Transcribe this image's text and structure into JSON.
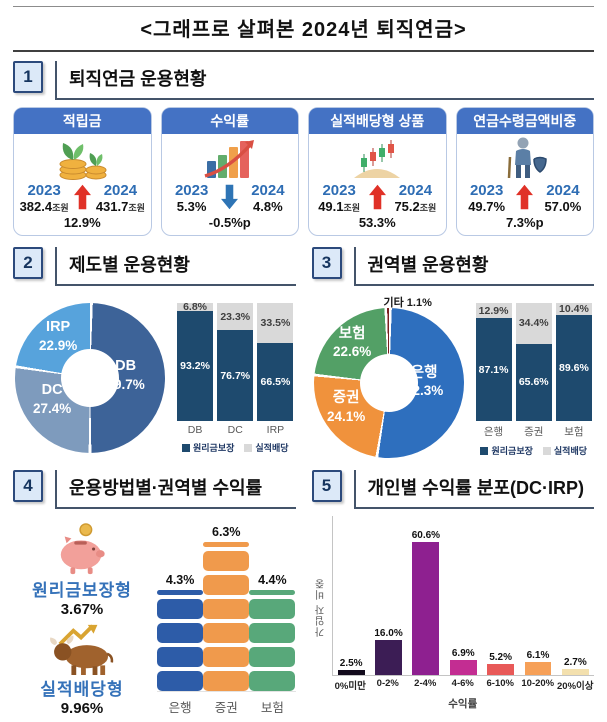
{
  "page_title": "<그래프로 살펴본 2024년 퇴직연금>",
  "sections": {
    "s1": {
      "num": "1",
      "title": "퇴직연금 운용현황"
    },
    "s2": {
      "num": "2",
      "title": "제도별 운용현황"
    },
    "s3": {
      "num": "3",
      "title": "권역별 운용현황"
    },
    "s4": {
      "num": "4",
      "title": "운용방법별·권역별 수익률"
    },
    "s5": {
      "num": "5",
      "title": "개인별 수익률 분포(DC·IRP)"
    }
  },
  "cards": [
    {
      "header": "적립금",
      "icon": "coin-sprout-icon",
      "year1": "2023",
      "value1": "382.4",
      "unit1": "조원",
      "year2": "2024",
      "value2": "431.7",
      "unit2": "조원",
      "direction": "up",
      "change": "12.9%"
    },
    {
      "header": "수익률",
      "icon": "bar-growth-icon",
      "year1": "2023",
      "value1": "5.3%",
      "unit1": "",
      "year2": "2024",
      "value2": "4.8%",
      "unit2": "",
      "direction": "down",
      "change": "-0.5%p"
    },
    {
      "header": "실적배당형 상품",
      "icon": "candlestick-icon",
      "year1": "2023",
      "value1": "49.1",
      "unit1": "조원",
      "year2": "2024",
      "value2": "75.2",
      "unit2": "조원",
      "direction": "up",
      "change": "53.3%"
    },
    {
      "header": "연금수령금액비중",
      "icon": "senior-icon",
      "year1": "2023",
      "value1": "49.7%",
      "unit1": "",
      "year2": "2024",
      "value2": "57.0%",
      "unit2": "",
      "direction": "up",
      "change": "7.3%p"
    }
  ],
  "methods": [
    {
      "label": "원리금보장형",
      "value": "3.67%",
      "icon": "piggy-bank-icon"
    },
    {
      "label": "실적배당형",
      "value": "9.96%",
      "icon": "bull-icon"
    }
  ],
  "colors": {
    "card_header": "#4472c4",
    "year_label": "#2e6db4",
    "arrow_up": "#e03127",
    "arrow_down": "#2e74b5",
    "accent_navy": "#1e4a6e",
    "accent_gray": "#d9d9d9",
    "section_line": "#44546a",
    "num_box_bg": "#dce9f8",
    "num_box_border": "#2c4a7c",
    "method_label": "#3572b9"
  },
  "chart_data": [
    {
      "id": "donut-system",
      "type": "pie",
      "donut": true,
      "title": "제도별 운용현황",
      "labels": [
        "DB",
        "DC",
        "IRP"
      ],
      "values": [
        49.7,
        27.4,
        22.9
      ],
      "colors": [
        "#3d6398",
        "#7e9bbd",
        "#57a3dc"
      ],
      "start_angle": "top",
      "direction": "clockwise"
    },
    {
      "id": "stack-system",
      "type": "bar",
      "stacked": true,
      "percent": true,
      "categories": [
        "DB",
        "DC",
        "IRP"
      ],
      "series": [
        {
          "name": "원리금보장",
          "color": "#1e4a6e",
          "values": [
            93.2,
            76.7,
            66.5
          ]
        },
        {
          "name": "실적배당",
          "color": "#d9d9d9",
          "values": [
            6.8,
            23.3,
            33.5
          ]
        }
      ],
      "ylim": [
        0,
        100
      ],
      "legend_position": "bottom"
    },
    {
      "id": "donut-sector",
      "type": "pie",
      "donut": true,
      "title": "권역별 운용현황",
      "labels": [
        "은행",
        "증권",
        "보험",
        "기타"
      ],
      "values": [
        52.3,
        24.1,
        22.6,
        1.1
      ],
      "colors": [
        "#2e6fbe",
        "#f0923c",
        "#53a066",
        "#7a1f1f"
      ],
      "start_angle": "top",
      "direction": "clockwise"
    },
    {
      "id": "stack-sector",
      "type": "bar",
      "stacked": true,
      "percent": true,
      "categories": [
        "은행",
        "증권",
        "보험"
      ],
      "series": [
        {
          "name": "원리금보장",
          "color": "#1e4a6e",
          "values": [
            87.1,
            65.6,
            89.6
          ]
        },
        {
          "name": "실적배당",
          "color": "#d9d9d9",
          "values": [
            12.9,
            34.4,
            10.4
          ]
        }
      ],
      "ylim": [
        0,
        100
      ],
      "legend_position": "bottom"
    },
    {
      "id": "seg-return",
      "type": "bar",
      "style": "segmented-units",
      "title": "권역별 수익률",
      "categories": [
        "은행",
        "증권",
        "보험"
      ],
      "values": [
        4.3,
        6.3,
        4.4
      ],
      "colors": [
        "#2d5ca8",
        "#f09a4c",
        "#58a87a"
      ],
      "unit": "%"
    },
    {
      "id": "dist-return",
      "type": "bar",
      "title": "개인별 수익률 분포(DC·IRP)",
      "categories": [
        "0%미만",
        "0-2%",
        "2-4%",
        "4-6%",
        "6-10%",
        "10-20%",
        "20%이상"
      ],
      "values": [
        2.5,
        16.0,
        60.6,
        6.9,
        5.2,
        6.1,
        2.7
      ],
      "colors": [
        "#120a1c",
        "#3c1d55",
        "#8e2090",
        "#c32d92",
        "#e85958",
        "#f6a058",
        "#f3e0ae"
      ],
      "xlabel": "수익률",
      "ylabel": "가입자 비중",
      "ylim": [
        0,
        65
      ]
    }
  ]
}
